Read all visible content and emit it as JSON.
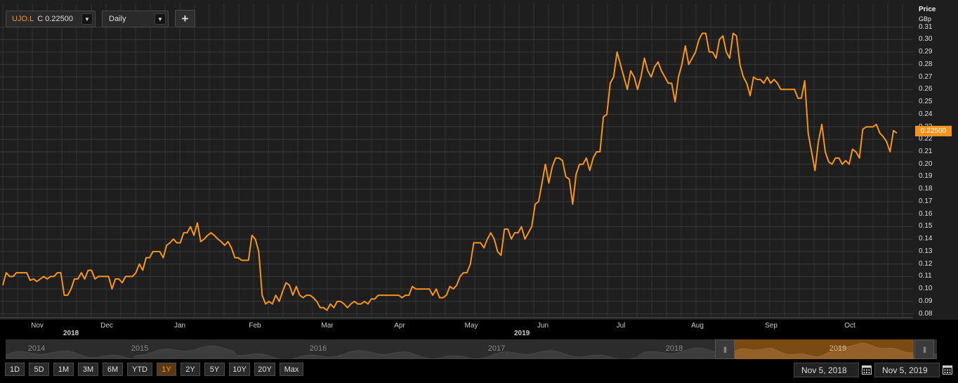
{
  "toolbar": {
    "ticker_symbol": "UJO.L",
    "ticker_close": "C 0.22500",
    "interval": "Daily",
    "add_label": "+"
  },
  "y_axis": {
    "title": "Price",
    "unit": "GBp",
    "ticks": [
      "0.31",
      "0.30",
      "0.29",
      "0.28",
      "0.27",
      "0.26",
      "0.25",
      "0.24",
      "0.23",
      "0.22",
      "0.21",
      "0.20",
      "0.19",
      "0.18",
      "0.17",
      "0.16",
      "0.15",
      "0.14",
      "0.13",
      "0.12",
      "0.11",
      "0.10",
      "0.09",
      "0.08"
    ]
  },
  "x_axis": {
    "months": [
      "Nov",
      "Dec",
      "Jan",
      "Feb",
      "Mar",
      "Apr",
      "May",
      "Jun",
      "Jul",
      "Aug",
      "Sep",
      "Oct"
    ],
    "years": [
      "2018",
      "2019"
    ]
  },
  "last_price": "0.22500",
  "navigator": {
    "years": [
      "2014",
      "2015",
      "2016",
      "2017",
      "2018",
      "2019"
    ]
  },
  "range_buttons": [
    "1D",
    "5D",
    "1M",
    "3M",
    "6M",
    "YTD",
    "1Y",
    "2Y",
    "5Y",
    "10Y",
    "20Y",
    "Max"
  ],
  "active_range": "1Y",
  "date_range": {
    "from": "Nov 5, 2018",
    "to": "Nov 5, 2019"
  },
  "colors": {
    "line": "#f7941d",
    "background": "#1e1e1e",
    "grid": "#3a3a3a"
  },
  "chart_data": {
    "type": "line",
    "series": [
      {
        "values": [
          0.103,
          0.113,
          0.11,
          0.11,
          0.113,
          0.113,
          0.113,
          0.113,
          0.107,
          0.108,
          0.106,
          0.108,
          0.11,
          0.108,
          0.11,
          0.11,
          0.113,
          0.113,
          0.095,
          0.095,
          0.1,
          0.108,
          0.108,
          0.113,
          0.108,
          0.115,
          0.115,
          0.108,
          0.11,
          0.11,
          0.11,
          0.11,
          0.1,
          0.108,
          0.108,
          0.105,
          0.11,
          0.11,
          0.11,
          0.113,
          0.12,
          0.115,
          0.125,
          0.125,
          0.13,
          0.13,
          0.13,
          0.125,
          0.135,
          0.137,
          0.14,
          0.137,
          0.137,
          0.145,
          0.145,
          0.15,
          0.143,
          0.153,
          0.138,
          0.14,
          0.143,
          0.145,
          0.143,
          0.14,
          0.138,
          0.135,
          0.138,
          0.133,
          0.125,
          0.125,
          0.123,
          0.123,
          0.123,
          0.143,
          0.14,
          0.13,
          0.095,
          0.088,
          0.09,
          0.088,
          0.095,
          0.09,
          0.098,
          0.105,
          0.103,
          0.095,
          0.102,
          0.095,
          0.093,
          0.095,
          0.095,
          0.093,
          0.09,
          0.085,
          0.085,
          0.083,
          0.088,
          0.085,
          0.09,
          0.09,
          0.088,
          0.085,
          0.088,
          0.09,
          0.088,
          0.088,
          0.09,
          0.088,
          0.092,
          0.092,
          0.095,
          0.095,
          0.095,
          0.095,
          0.095,
          0.095,
          0.095,
          0.093,
          0.095,
          0.095,
          0.102,
          0.1,
          0.1,
          0.1,
          0.1,
          0.1,
          0.095,
          0.1,
          0.093,
          0.093,
          0.095,
          0.102,
          0.1,
          0.103,
          0.11,
          0.113,
          0.113,
          0.12,
          0.137,
          0.137,
          0.137,
          0.133,
          0.14,
          0.145,
          0.14,
          0.13,
          0.127,
          0.148,
          0.148,
          0.14,
          0.145,
          0.145,
          0.15,
          0.14,
          0.145,
          0.15,
          0.168,
          0.17,
          0.185,
          0.2,
          0.185,
          0.198,
          0.205,
          0.205,
          0.203,
          0.19,
          0.188,
          0.168,
          0.192,
          0.2,
          0.2,
          0.205,
          0.195,
          0.205,
          0.21,
          0.21,
          0.238,
          0.24,
          0.265,
          0.27,
          0.29,
          0.28,
          0.27,
          0.26,
          0.275,
          0.27,
          0.26,
          0.27,
          0.285,
          0.275,
          0.27,
          0.278,
          0.282,
          0.275,
          0.27,
          0.265,
          0.265,
          0.25,
          0.27,
          0.28,
          0.295,
          0.28,
          0.285,
          0.29,
          0.3,
          0.305,
          0.305,
          0.29,
          0.29,
          0.285,
          0.3,
          0.303,
          0.29,
          0.285,
          0.305,
          0.303,
          0.28,
          0.27,
          0.265,
          0.255,
          0.27,
          0.268,
          0.268,
          0.265,
          0.27,
          0.265,
          0.268,
          0.265,
          0.26,
          0.26,
          0.26,
          0.26,
          0.26,
          0.253,
          0.253,
          0.267,
          0.225,
          0.21,
          0.195,
          0.218,
          0.232,
          0.21,
          0.202,
          0.2,
          0.205,
          0.205,
          0.2,
          0.203,
          0.2,
          0.212,
          0.21,
          0.205,
          0.228,
          0.23,
          0.23,
          0.23,
          0.232,
          0.225,
          0.222,
          0.218,
          0.21,
          0.227,
          0.225
        ]
      }
    ],
    "ylim": [
      0.077,
      0.312
    ]
  }
}
